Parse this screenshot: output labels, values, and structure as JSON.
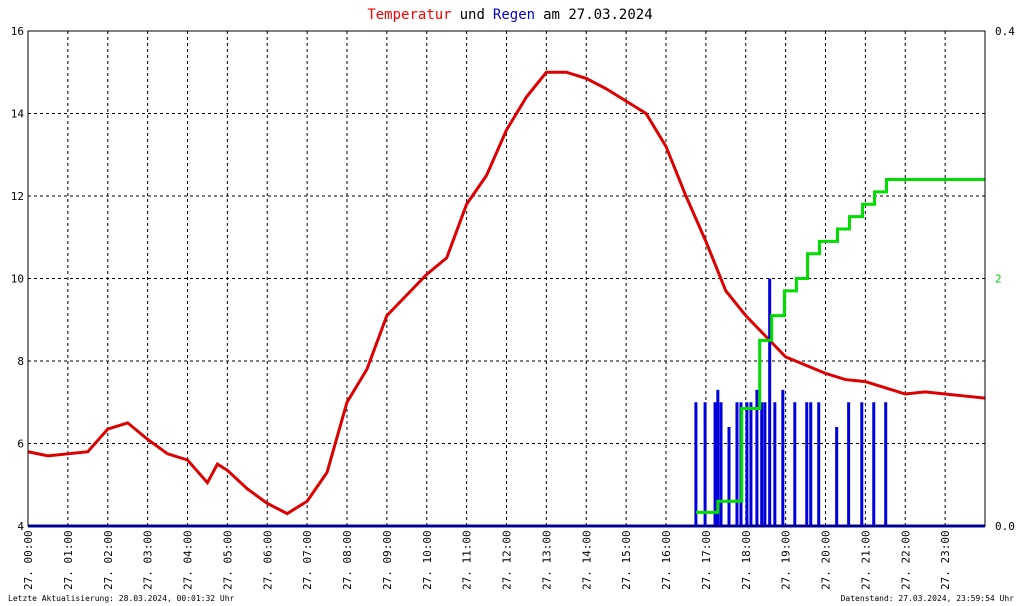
{
  "chart_data": {
    "type": "line",
    "title_parts": [
      {
        "text": "Temperatur",
        "color": "#ff0000"
      },
      {
        "text": "und",
        "color": "#000000"
      },
      {
        "text": "Regen",
        "color": "#0000cc"
      },
      {
        "text": "am 27.03.2024",
        "color": "#000000"
      }
    ],
    "footer_left": "Letzte Aktualisierung: 28.03.2024, 00:01:32 Uhr",
    "footer_right": "Datenstand: 27.03.2024, 23:59:54 Uhr",
    "xlim": [
      0,
      24
    ],
    "xticks": [
      {
        "value": 0,
        "label": "27. 00:00"
      },
      {
        "value": 1,
        "label": "27. 01:00"
      },
      {
        "value": 2,
        "label": "27. 02:00"
      },
      {
        "value": 3,
        "label": "27. 03:00"
      },
      {
        "value": 4,
        "label": "27. 04:00"
      },
      {
        "value": 5,
        "label": "27. 05:00"
      },
      {
        "value": 6,
        "label": "27. 06:00"
      },
      {
        "value": 7,
        "label": "27. 07:00"
      },
      {
        "value": 8,
        "label": "27. 08:00"
      },
      {
        "value": 9,
        "label": "27. 09:00"
      },
      {
        "value": 10,
        "label": "27. 10:00"
      },
      {
        "value": 11,
        "label": "27. 11:00"
      },
      {
        "value": 12,
        "label": "27. 12:00"
      },
      {
        "value": 13,
        "label": "27. 13:00"
      },
      {
        "value": 14,
        "label": "27. 14:00"
      },
      {
        "value": 15,
        "label": "27. 15:00"
      },
      {
        "value": 16,
        "label": "27. 16:00"
      },
      {
        "value": 17,
        "label": "27. 17:00"
      },
      {
        "value": 18,
        "label": "27. 18:00"
      },
      {
        "value": 19,
        "label": "27. 19:00"
      },
      {
        "value": 20,
        "label": "27. 20:00"
      },
      {
        "value": 21,
        "label": "27. 21:00"
      },
      {
        "value": 22,
        "label": "27. 22:00"
      },
      {
        "value": 23,
        "label": "27. 23:00"
      }
    ],
    "ylim": [
      4,
      16
    ],
    "yticks": [
      4,
      6,
      8,
      10,
      12,
      14,
      16
    ],
    "y2lim": [
      0,
      0.4
    ],
    "y2ticks": [
      {
        "value": 0,
        "label": "0.0"
      },
      {
        "value": 0.4,
        "label": "0.4"
      }
    ],
    "y3lim": [
      0,
      4
    ],
    "y3ticks": [
      2
    ],
    "y3color": "#00cc00",
    "grid": true,
    "series": [
      {
        "type": "line",
        "color": "#dd0000",
        "x": [
          0,
          0.5,
          1,
          1.5,
          2,
          2.5,
          3,
          3.5,
          4,
          4.5,
          4.75,
          5,
          5.5,
          6,
          6.5,
          7,
          7.5,
          8,
          8.5,
          9,
          9.5,
          10,
          10.5,
          11,
          11.5,
          12,
          12.5,
          13,
          13.5,
          14,
          14.5,
          15,
          15.5,
          16,
          16.5,
          17,
          17.5,
          18,
          18.5,
          19,
          19.5,
          20,
          20.5,
          21,
          21.5,
          22,
          22.5,
          23,
          23.5,
          24
        ],
        "values": [
          5.8,
          5.7,
          5.75,
          5.8,
          6.35,
          6.5,
          6.1,
          5.75,
          5.6,
          5.05,
          5.5,
          5.35,
          4.9,
          4.55,
          4.3,
          4.6,
          5.3,
          7.0,
          7.8,
          9.1,
          9.6,
          10.1,
          10.5,
          11.8,
          12.5,
          13.6,
          14.4,
          15.0,
          15.0,
          14.85,
          14.6,
          14.3,
          14.0,
          13.2,
          12.0,
          10.9,
          9.7,
          9.1,
          8.6,
          8.1,
          7.9,
          7.7,
          7.55,
          7.5,
          7.35,
          7.2,
          7.25,
          7.2,
          7.15,
          7.1
        ]
      },
      {
        "type": "bar",
        "axis": "y2",
        "color": "#0000dd",
        "x": [
          16.75,
          16.98,
          17.23,
          17.3,
          17.38,
          17.58,
          17.78,
          17.88,
          18.03,
          18.13,
          18.28,
          18.4,
          18.48,
          18.6,
          18.73,
          18.93,
          19.23,
          19.53,
          19.63,
          19.83,
          20.28,
          20.58,
          20.91,
          21.21,
          21.51
        ],
        "values": [
          0.1,
          0.1,
          0.1,
          0.11,
          0.1,
          0.08,
          0.1,
          0.1,
          0.1,
          0.1,
          0.11,
          0.1,
          0.1,
          0.2,
          0.1,
          0.11,
          0.1,
          0.1,
          0.1,
          0.1,
          0.08,
          0.1,
          0.1,
          0.1,
          0.1
        ]
      },
      {
        "type": "step",
        "axis": "y3",
        "color": "#00dd00",
        "x": [
          16.75,
          17.3,
          17.9,
          18.35,
          18.65,
          18.97,
          19.27,
          19.55,
          19.85,
          20.3,
          20.6,
          20.93,
          21.23,
          21.53,
          24
        ],
        "values": [
          0.11,
          0.2,
          0.95,
          1.5,
          1.7,
          1.9,
          2.0,
          2.2,
          2.3,
          2.4,
          2.5,
          2.6,
          2.7,
          2.8,
          2.8
        ]
      }
    ]
  }
}
